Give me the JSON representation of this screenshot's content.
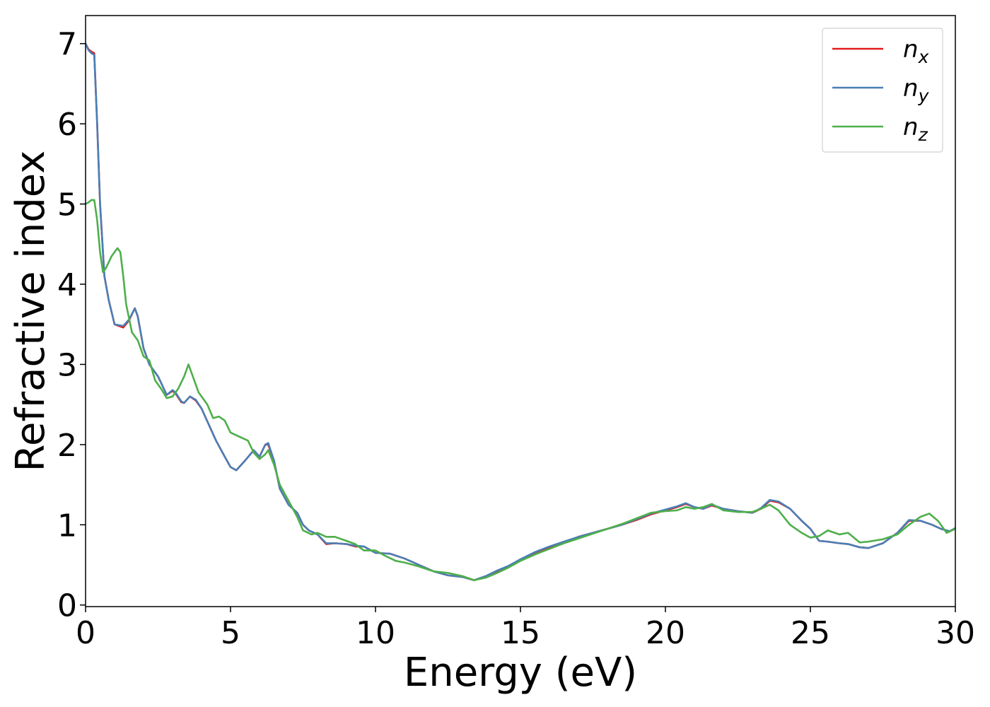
{
  "chart_data": {
    "type": "line",
    "title": "",
    "xlabel": "Energy (eV)",
    "ylabel": "Refractive index",
    "xlim": [
      0,
      30
    ],
    "ylim": [
      -0.02,
      7.35
    ],
    "xticks": [
      0,
      5,
      10,
      15,
      20,
      25,
      30
    ],
    "yticks": [
      0,
      1,
      2,
      3,
      4,
      5,
      6,
      7
    ],
    "grid": false,
    "legend_position": "top-right",
    "series": [
      {
        "name": "n_x",
        "label_base": "n",
        "label_sub": "x",
        "color": "#e41a1c",
        "points": [
          [
            0,
            7.0
          ],
          [
            0.1,
            6.93
          ],
          [
            0.2,
            6.9
          ],
          [
            0.3,
            6.88
          ],
          [
            0.4,
            6.0
          ],
          [
            0.5,
            5.0
          ],
          [
            0.65,
            4.1
          ],
          [
            0.8,
            3.8
          ],
          [
            1.0,
            3.5
          ],
          [
            1.3,
            3.46
          ],
          [
            1.5,
            3.55
          ],
          [
            1.7,
            3.7
          ],
          [
            1.8,
            3.6
          ],
          [
            2.0,
            3.2
          ],
          [
            2.2,
            3.0
          ],
          [
            2.5,
            2.85
          ],
          [
            2.8,
            2.62
          ],
          [
            3.0,
            2.67
          ],
          [
            3.1,
            2.64
          ],
          [
            3.3,
            2.53
          ],
          [
            3.4,
            2.52
          ],
          [
            3.6,
            2.6
          ],
          [
            3.8,
            2.55
          ],
          [
            4.0,
            2.45
          ],
          [
            4.5,
            2.05
          ],
          [
            4.8,
            1.85
          ],
          [
            5.0,
            1.72
          ],
          [
            5.2,
            1.68
          ],
          [
            5.5,
            1.8
          ],
          [
            5.8,
            1.93
          ],
          [
            6.0,
            1.85
          ],
          [
            6.2,
            2.0
          ],
          [
            6.3,
            2.0
          ],
          [
            6.5,
            1.8
          ],
          [
            6.7,
            1.45
          ],
          [
            7.0,
            1.25
          ],
          [
            7.3,
            1.15
          ],
          [
            7.5,
            1.0
          ],
          [
            7.7,
            0.93
          ],
          [
            8.0,
            0.88
          ],
          [
            8.3,
            0.76
          ],
          [
            8.6,
            0.77
          ],
          [
            9.0,
            0.76
          ],
          [
            9.3,
            0.73
          ],
          [
            9.6,
            0.73
          ],
          [
            10.0,
            0.65
          ],
          [
            10.5,
            0.64
          ],
          [
            11.0,
            0.58
          ],
          [
            11.5,
            0.5
          ],
          [
            12.0,
            0.42
          ],
          [
            12.5,
            0.37
          ],
          [
            13.0,
            0.35
          ],
          [
            13.4,
            0.31
          ],
          [
            13.8,
            0.35
          ],
          [
            14.2,
            0.42
          ],
          [
            14.6,
            0.48
          ],
          [
            15.0,
            0.56
          ],
          [
            15.5,
            0.65
          ],
          [
            16.0,
            0.72
          ],
          [
            16.5,
            0.78
          ],
          [
            17.0,
            0.85
          ],
          [
            17.5,
            0.9
          ],
          [
            18.0,
            0.95
          ],
          [
            18.5,
            1.0
          ],
          [
            19.0,
            1.06
          ],
          [
            19.5,
            1.13
          ],
          [
            20.0,
            1.18
          ],
          [
            20.4,
            1.22
          ],
          [
            20.7,
            1.26
          ],
          [
            21.0,
            1.22
          ],
          [
            21.3,
            1.2
          ],
          [
            21.6,
            1.24
          ],
          [
            22.0,
            1.2
          ],
          [
            22.5,
            1.17
          ],
          [
            23.0,
            1.15
          ],
          [
            23.3,
            1.2
          ],
          [
            23.6,
            1.3
          ],
          [
            23.9,
            1.28
          ],
          [
            24.3,
            1.2
          ],
          [
            24.7,
            1.05
          ],
          [
            25.0,
            0.95
          ],
          [
            25.3,
            0.8
          ],
          [
            25.6,
            0.79
          ],
          [
            26.0,
            0.77
          ],
          [
            26.3,
            0.76
          ],
          [
            26.7,
            0.72
          ],
          [
            27.0,
            0.71
          ],
          [
            27.5,
            0.77
          ],
          [
            28.0,
            0.9
          ],
          [
            28.4,
            1.05
          ],
          [
            28.8,
            1.05
          ],
          [
            29.2,
            1.0
          ],
          [
            29.5,
            0.95
          ],
          [
            29.8,
            0.92
          ],
          [
            30.0,
            0.95
          ]
        ]
      },
      {
        "name": "n_y",
        "label_base": "n",
        "label_sub": "y",
        "color": "#4a7fb5",
        "points": [
          [
            0,
            7.0
          ],
          [
            0.1,
            6.92
          ],
          [
            0.2,
            6.88
          ],
          [
            0.3,
            6.86
          ],
          [
            0.4,
            6.0
          ],
          [
            0.5,
            5.0
          ],
          [
            0.65,
            4.1
          ],
          [
            0.8,
            3.8
          ],
          [
            1.0,
            3.5
          ],
          [
            1.3,
            3.48
          ],
          [
            1.5,
            3.56
          ],
          [
            1.7,
            3.7
          ],
          [
            1.8,
            3.6
          ],
          [
            2.0,
            3.2
          ],
          [
            2.2,
            3.0
          ],
          [
            2.5,
            2.85
          ],
          [
            2.8,
            2.62
          ],
          [
            3.0,
            2.68
          ],
          [
            3.1,
            2.65
          ],
          [
            3.3,
            2.54
          ],
          [
            3.4,
            2.52
          ],
          [
            3.6,
            2.6
          ],
          [
            3.8,
            2.56
          ],
          [
            4.0,
            2.45
          ],
          [
            4.5,
            2.05
          ],
          [
            4.8,
            1.85
          ],
          [
            5.0,
            1.72
          ],
          [
            5.2,
            1.68
          ],
          [
            5.5,
            1.8
          ],
          [
            5.8,
            1.93
          ],
          [
            6.0,
            1.85
          ],
          [
            6.2,
            2.0
          ],
          [
            6.3,
            2.02
          ],
          [
            6.5,
            1.8
          ],
          [
            6.7,
            1.45
          ],
          [
            7.0,
            1.25
          ],
          [
            7.3,
            1.15
          ],
          [
            7.5,
            1.0
          ],
          [
            7.7,
            0.93
          ],
          [
            8.0,
            0.88
          ],
          [
            8.3,
            0.77
          ],
          [
            8.6,
            0.77
          ],
          [
            9.0,
            0.76
          ],
          [
            9.3,
            0.74
          ],
          [
            9.6,
            0.73
          ],
          [
            10.0,
            0.65
          ],
          [
            10.5,
            0.64
          ],
          [
            11.0,
            0.58
          ],
          [
            11.5,
            0.5
          ],
          [
            12.0,
            0.42
          ],
          [
            12.5,
            0.37
          ],
          [
            13.0,
            0.35
          ],
          [
            13.4,
            0.31
          ],
          [
            13.8,
            0.36
          ],
          [
            14.2,
            0.43
          ],
          [
            14.6,
            0.49
          ],
          [
            15.0,
            0.57
          ],
          [
            15.5,
            0.66
          ],
          [
            16.0,
            0.73
          ],
          [
            16.5,
            0.79
          ],
          [
            17.0,
            0.85
          ],
          [
            17.5,
            0.9
          ],
          [
            18.0,
            0.95
          ],
          [
            18.5,
            1.0
          ],
          [
            19.0,
            1.07
          ],
          [
            19.5,
            1.14
          ],
          [
            20.0,
            1.19
          ],
          [
            20.4,
            1.23
          ],
          [
            20.7,
            1.27
          ],
          [
            21.0,
            1.22
          ],
          [
            21.3,
            1.2
          ],
          [
            21.6,
            1.25
          ],
          [
            22.0,
            1.2
          ],
          [
            22.5,
            1.17
          ],
          [
            23.0,
            1.15
          ],
          [
            23.3,
            1.21
          ],
          [
            23.6,
            1.31
          ],
          [
            23.9,
            1.29
          ],
          [
            24.3,
            1.2
          ],
          [
            24.7,
            1.05
          ],
          [
            25.0,
            0.95
          ],
          [
            25.3,
            0.8
          ],
          [
            25.6,
            0.79
          ],
          [
            26.0,
            0.77
          ],
          [
            26.3,
            0.76
          ],
          [
            26.7,
            0.72
          ],
          [
            27.0,
            0.71
          ],
          [
            27.5,
            0.77
          ],
          [
            28.0,
            0.9
          ],
          [
            28.4,
            1.06
          ],
          [
            28.8,
            1.05
          ],
          [
            29.2,
            1.0
          ],
          [
            29.5,
            0.95
          ],
          [
            29.8,
            0.92
          ],
          [
            30.0,
            0.96
          ]
        ]
      },
      {
        "name": "n_z",
        "label_base": "n",
        "label_sub": "z",
        "color": "#4daf4a",
        "points": [
          [
            0,
            5.0
          ],
          [
            0.1,
            5.02
          ],
          [
            0.2,
            5.05
          ],
          [
            0.3,
            5.05
          ],
          [
            0.4,
            4.8
          ],
          [
            0.5,
            4.4
          ],
          [
            0.6,
            4.15
          ],
          [
            0.7,
            4.2
          ],
          [
            0.9,
            4.35
          ],
          [
            1.1,
            4.45
          ],
          [
            1.2,
            4.4
          ],
          [
            1.3,
            4.1
          ],
          [
            1.4,
            3.75
          ],
          [
            1.6,
            3.4
          ],
          [
            1.8,
            3.3
          ],
          [
            2.0,
            3.1
          ],
          [
            2.2,
            3.05
          ],
          [
            2.4,
            2.8
          ],
          [
            2.6,
            2.7
          ],
          [
            2.8,
            2.58
          ],
          [
            3.0,
            2.6
          ],
          [
            3.2,
            2.7
          ],
          [
            3.4,
            2.85
          ],
          [
            3.55,
            3.0
          ],
          [
            3.7,
            2.85
          ],
          [
            3.9,
            2.65
          ],
          [
            4.2,
            2.5
          ],
          [
            4.4,
            2.33
          ],
          [
            4.6,
            2.35
          ],
          [
            4.8,
            2.3
          ],
          [
            5.0,
            2.15
          ],
          [
            5.3,
            2.1
          ],
          [
            5.6,
            2.05
          ],
          [
            5.8,
            1.9
          ],
          [
            6.0,
            1.82
          ],
          [
            6.2,
            1.88
          ],
          [
            6.3,
            1.93
          ],
          [
            6.5,
            1.75
          ],
          [
            6.7,
            1.5
          ],
          [
            7.0,
            1.3
          ],
          [
            7.3,
            1.1
          ],
          [
            7.5,
            0.93
          ],
          [
            7.8,
            0.88
          ],
          [
            8.0,
            0.9
          ],
          [
            8.3,
            0.85
          ],
          [
            8.6,
            0.85
          ],
          [
            9.0,
            0.8
          ],
          [
            9.3,
            0.76
          ],
          [
            9.6,
            0.68
          ],
          [
            10.0,
            0.68
          ],
          [
            10.3,
            0.62
          ],
          [
            10.7,
            0.55
          ],
          [
            11.0,
            0.53
          ],
          [
            11.5,
            0.48
          ],
          [
            12.0,
            0.42
          ],
          [
            12.5,
            0.4
          ],
          [
            13.0,
            0.36
          ],
          [
            13.4,
            0.31
          ],
          [
            13.8,
            0.34
          ],
          [
            14.2,
            0.4
          ],
          [
            14.6,
            0.47
          ],
          [
            15.0,
            0.55
          ],
          [
            15.5,
            0.63
          ],
          [
            16.0,
            0.7
          ],
          [
            16.5,
            0.77
          ],
          [
            17.0,
            0.83
          ],
          [
            17.5,
            0.89
          ],
          [
            18.0,
            0.95
          ],
          [
            18.5,
            1.01
          ],
          [
            19.0,
            1.08
          ],
          [
            19.5,
            1.15
          ],
          [
            20.0,
            1.17
          ],
          [
            20.4,
            1.18
          ],
          [
            20.7,
            1.22
          ],
          [
            21.0,
            1.2
          ],
          [
            21.3,
            1.22
          ],
          [
            21.6,
            1.26
          ],
          [
            22.0,
            1.18
          ],
          [
            22.5,
            1.16
          ],
          [
            23.0,
            1.16
          ],
          [
            23.3,
            1.2
          ],
          [
            23.6,
            1.25
          ],
          [
            23.9,
            1.18
          ],
          [
            24.3,
            1.0
          ],
          [
            24.7,
            0.9
          ],
          [
            25.0,
            0.84
          ],
          [
            25.3,
            0.86
          ],
          [
            25.6,
            0.93
          ],
          [
            26.0,
            0.88
          ],
          [
            26.3,
            0.9
          ],
          [
            26.7,
            0.78
          ],
          [
            27.0,
            0.79
          ],
          [
            27.5,
            0.82
          ],
          [
            28.0,
            0.88
          ],
          [
            28.4,
            1.0
          ],
          [
            28.8,
            1.1
          ],
          [
            29.1,
            1.14
          ],
          [
            29.4,
            1.05
          ],
          [
            29.7,
            0.9
          ],
          [
            30.0,
            0.95
          ]
        ]
      }
    ]
  }
}
